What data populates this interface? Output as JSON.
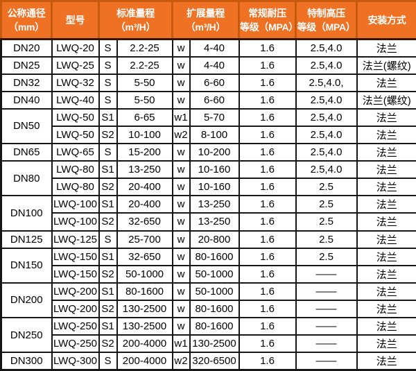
{
  "colors": {
    "header_bg": "#ee7124",
    "header_divider": "#c85a0e",
    "header_text": "#ffffff",
    "grid": "#161616",
    "body_text": "#000000"
  },
  "header": {
    "diameter": "公称通径\n（mm）",
    "model": "型号",
    "standard_range": "标准量程\n（m³/H）",
    "extended_range": "扩展量程\n（m³/H）",
    "normal_pressure": "常规耐压\n等级（MPA）",
    "special_pressure": "特制高压\n等级（MPA）",
    "installation": "安装方式"
  },
  "rows": [
    {
      "cells": [
        {
          "text": "DN20"
        },
        {
          "text": "LWQ-20"
        },
        {
          "text": "S"
        },
        {
          "text": "2.2-25"
        },
        {
          "text": "w"
        },
        {
          "text": "4-40"
        },
        {
          "text": "1.6"
        },
        {
          "text": "2.5,4.0"
        },
        {
          "text": "法兰"
        }
      ]
    },
    {
      "cells": [
        {
          "text": "DN25"
        },
        {
          "text": "LWQ-25"
        },
        {
          "text": "S"
        },
        {
          "text": "2.2-25"
        },
        {
          "text": "w"
        },
        {
          "text": "4-40"
        },
        {
          "text": "1.6"
        },
        {
          "text": "2.5,4.0"
        },
        {
          "text": "法兰(螺纹)"
        }
      ]
    },
    {
      "cells": [
        {
          "text": "DN32"
        },
        {
          "text": "LWQ-32"
        },
        {
          "text": "S"
        },
        {
          "text": "5-50"
        },
        {
          "text": "w"
        },
        {
          "text": "6-60"
        },
        {
          "text": "1.6"
        },
        {
          "text": "2.5,4.0,"
        },
        {
          "text": "法兰"
        }
      ]
    },
    {
      "cells": [
        {
          "text": "DN40"
        },
        {
          "text": "LWQ-40"
        },
        {
          "text": "S"
        },
        {
          "text": "5-50"
        },
        {
          "text": "w"
        },
        {
          "text": "6-60"
        },
        {
          "text": "1.6"
        },
        {
          "text": "2.5,4.0"
        },
        {
          "text": "法兰(螺纹)"
        }
      ]
    },
    {
      "cells": [
        {
          "text": "DN50",
          "rowspan": 2
        },
        {
          "text": "LWQ-50"
        },
        {
          "text": "S1"
        },
        {
          "text": "6-65"
        },
        {
          "text": "w1"
        },
        {
          "text": "5-70"
        },
        {
          "text": "1.6"
        },
        {
          "text": "2.5,4.0"
        },
        {
          "text": "法兰"
        }
      ]
    },
    {
      "cells": [
        {
          "text": "LWQ-50"
        },
        {
          "text": "S2"
        },
        {
          "text": "10-100"
        },
        {
          "text": "w2"
        },
        {
          "text": "8-100"
        },
        {
          "text": "1.6"
        },
        {
          "text": "2.5,4.0"
        },
        {
          "text": "法兰"
        }
      ]
    },
    {
      "cells": [
        {
          "text": "DN65"
        },
        {
          "text": "LWQ-65"
        },
        {
          "text": "S"
        },
        {
          "text": "15-200"
        },
        {
          "text": "w"
        },
        {
          "text": "10-200"
        },
        {
          "text": "1.6"
        },
        {
          "text": "2.5,4.0"
        },
        {
          "text": "法兰"
        }
      ]
    },
    {
      "cells": [
        {
          "text": "DN80",
          "rowspan": 2
        },
        {
          "text": "LWQ-80"
        },
        {
          "text": "S1"
        },
        {
          "text": "13-250"
        },
        {
          "text": "w"
        },
        {
          "text": "10-160"
        },
        {
          "text": "1.6"
        },
        {
          "text": "2.5,4.0"
        },
        {
          "text": "法兰"
        }
      ]
    },
    {
      "cells": [
        {
          "text": "LWQ-80"
        },
        {
          "text": "S2"
        },
        {
          "text": "20-400"
        },
        {
          "text": "w"
        },
        {
          "text": "10-160"
        },
        {
          "text": "1.6"
        },
        {
          "text": "2.5"
        },
        {
          "text": "法兰"
        }
      ]
    },
    {
      "cells": [
        {
          "text": "DN100",
          "rowspan": 2
        },
        {
          "text": "LWQ-100"
        },
        {
          "text": "S1"
        },
        {
          "text": "20-400"
        },
        {
          "text": "w"
        },
        {
          "text": "13-250"
        },
        {
          "text": "1.6"
        },
        {
          "text": "2.5"
        },
        {
          "text": "法兰"
        }
      ]
    },
    {
      "cells": [
        {
          "text": "LWQ-100"
        },
        {
          "text": "S2"
        },
        {
          "text": "32-650"
        },
        {
          "text": "w"
        },
        {
          "text": "13-250"
        },
        {
          "text": "1.6"
        },
        {
          "text": "2.5"
        },
        {
          "text": "法兰"
        }
      ]
    },
    {
      "cells": [
        {
          "text": "DN125"
        },
        {
          "text": "LWQ-125"
        },
        {
          "text": "S"
        },
        {
          "text": "25-700"
        },
        {
          "text": "w"
        },
        {
          "text": "20-800"
        },
        {
          "text": "1.6"
        },
        {
          "text": "2.5"
        },
        {
          "text": "法兰"
        }
      ]
    },
    {
      "cells": [
        {
          "text": "DN150",
          "rowspan": 2
        },
        {
          "text": "LWQ-150"
        },
        {
          "text": "S1"
        },
        {
          "text": "32-650"
        },
        {
          "text": "w"
        },
        {
          "text": "80-1600"
        },
        {
          "text": "1.6"
        },
        {
          "text": "2.5"
        },
        {
          "text": "法兰"
        }
      ]
    },
    {
      "cells": [
        {
          "text": "LWQ-150"
        },
        {
          "text": "S2"
        },
        {
          "text": "50-1000"
        },
        {
          "text": "w"
        },
        {
          "text": "50-1000"
        },
        {
          "text": "1.6"
        },
        {
          "text": "——"
        },
        {
          "text": "法兰"
        }
      ]
    },
    {
      "cells": [
        {
          "text": "DN200",
          "rowspan": 2
        },
        {
          "text": "LWQ-200"
        },
        {
          "text": "S1"
        },
        {
          "text": "80-1600"
        },
        {
          "text": "w"
        },
        {
          "text": "50-1000"
        },
        {
          "text": "1.6"
        },
        {
          "text": "——"
        },
        {
          "text": "法兰"
        }
      ]
    },
    {
      "cells": [
        {
          "text": "LWQ-200"
        },
        {
          "text": "S2"
        },
        {
          "text": "130-2500"
        },
        {
          "text": "w"
        },
        {
          "text": "80-1600"
        },
        {
          "text": "1.6"
        },
        {
          "text": "——"
        },
        {
          "text": "法兰"
        }
      ]
    },
    {
      "cells": [
        {
          "text": "DN250",
          "rowspan": 2
        },
        {
          "text": "LWQ-250"
        },
        {
          "text": "S1"
        },
        {
          "text": "130-2500"
        },
        {
          "text": "w"
        },
        {
          "text": "80-1600"
        },
        {
          "text": "1.6"
        },
        {
          "text": "——"
        },
        {
          "text": "法兰"
        }
      ]
    },
    {
      "cells": [
        {
          "text": "LWQ-250"
        },
        {
          "text": "S2"
        },
        {
          "text": "200-4000"
        },
        {
          "text": "w1"
        },
        {
          "text": "130-2500"
        },
        {
          "text": "1.6"
        },
        {
          "text": "——"
        },
        {
          "text": "法兰"
        }
      ]
    },
    {
      "cells": [
        {
          "text": "DN300"
        },
        {
          "text": "LWQ-300"
        },
        {
          "text": "S"
        },
        {
          "text": "200-4000"
        },
        {
          "text": "w2"
        },
        {
          "text": "320-6500"
        },
        {
          "text": "1.6"
        },
        {
          "text": "——"
        },
        {
          "text": "法兰"
        }
      ]
    }
  ]
}
